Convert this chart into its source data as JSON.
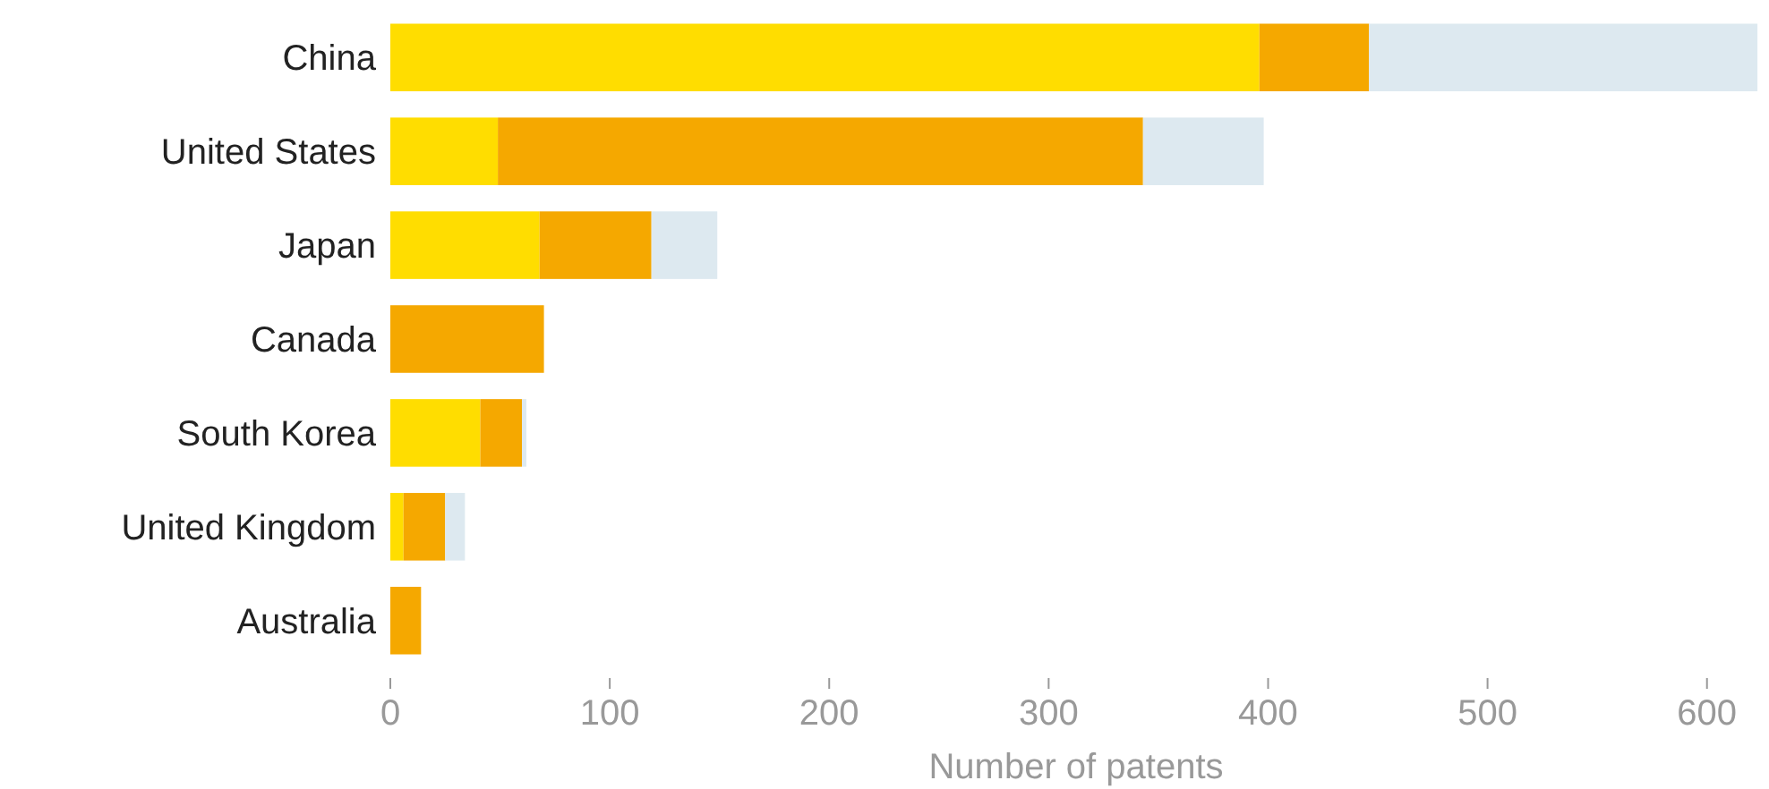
{
  "chart_data": {
    "type": "bar",
    "orientation": "horizontal",
    "stacked": true,
    "xlabel": "Number of patents",
    "categories": [
      "China",
      "United States",
      "Japan",
      "Canada",
      "South Korea",
      "United Kingdom",
      "Australia"
    ],
    "series": [
      {
        "color": "#ffdd00",
        "values": [
          396,
          49,
          68,
          0,
          41,
          6,
          0
        ]
      },
      {
        "color": "#f5a800",
        "values": [
          50,
          294,
          51,
          70,
          19,
          19,
          14
        ]
      },
      {
        "color": "#dde9f0",
        "values": [
          177,
          55,
          30,
          0,
          2,
          9,
          0
        ]
      }
    ],
    "xlim": [
      0,
      625
    ],
    "xticks": [
      0,
      100,
      200,
      300,
      400,
      500,
      600
    ],
    "grid": false
  }
}
